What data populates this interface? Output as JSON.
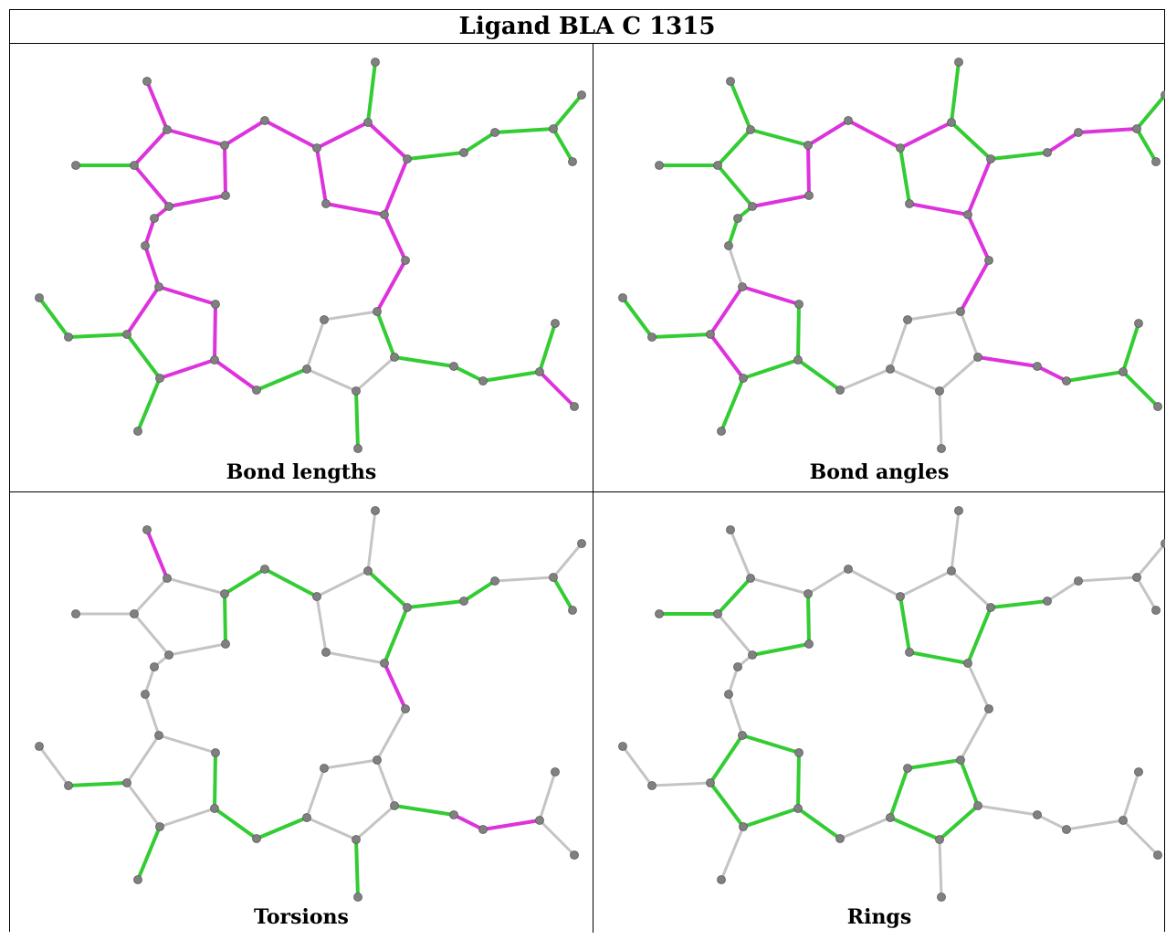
{
  "title": "Ligand BLA C 1315",
  "panels": [
    {
      "caption": "Bond lengths",
      "offset": [
        0,
        0
      ],
      "colors": {}
    },
    {
      "caption": "Bond angles",
      "offset": [
        638,
        0
      ],
      "colors": {}
    },
    {
      "caption": "Torsions",
      "offset": [
        0,
        490
      ],
      "colors": {}
    },
    {
      "caption": "Rings",
      "offset": [
        638,
        490
      ],
      "colors": {}
    }
  ],
  "palette": {
    "green": "#33cc33",
    "magenta": "#dd33dd",
    "gray": "#c4c4c4",
    "atom": "#808080"
  }
}
